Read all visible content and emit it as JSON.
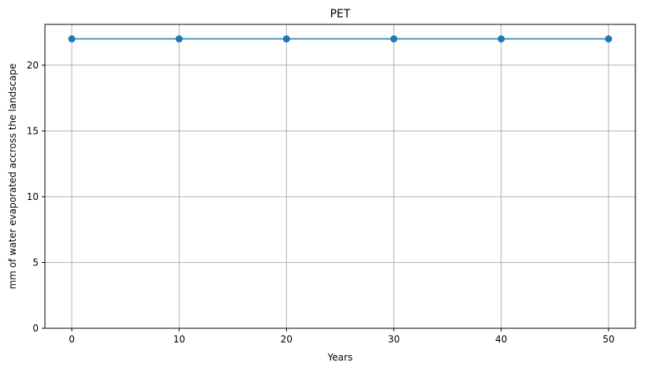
{
  "chart_data": {
    "type": "line",
    "title": "PET",
    "xlabel": "Years",
    "ylabel": "mm of water evaporated accross the landscape",
    "x": [
      0,
      10,
      20,
      30,
      40,
      50
    ],
    "series": [
      {
        "values": [
          22,
          22,
          22,
          22,
          22,
          22
        ],
        "color": "#1f77b4"
      }
    ],
    "xlim": [
      -2.5,
      52.5
    ],
    "ylim": [
      0,
      23.1
    ],
    "xticks": [
      0,
      10,
      20,
      30,
      40,
      50
    ],
    "yticks": [
      0,
      5,
      10,
      15,
      20
    ],
    "grid": true,
    "grid_color": "#b0b0b0",
    "marker": "circle"
  }
}
